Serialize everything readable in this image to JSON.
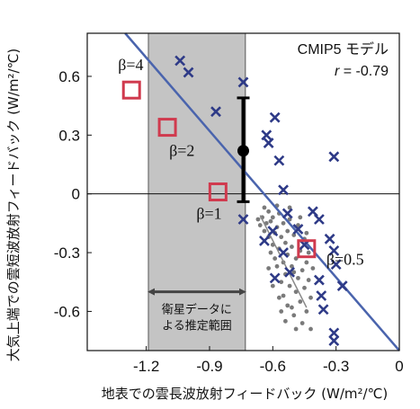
{
  "chart_data": {
    "type": "scatter",
    "xlabel": "地表での雲長波放射フィードバック (W/m²/℃)",
    "ylabel": "大気上端での雲短波放射フィードバック (W/m²/℃)",
    "xlim": [
      -1.48,
      0
    ],
    "ylim": [
      -0.8,
      0.82
    ],
    "x_ticks": [
      -1.2,
      -0.9,
      -0.6,
      -0.3,
      0
    ],
    "x_tick_labels": [
      "-1.2",
      "-0.9",
      "-0.6",
      "-0.3",
      "0"
    ],
    "y_ticks": [
      0.6,
      0.3,
      0,
      -0.3,
      -0.6
    ],
    "y_tick_labels": [
      "0.6",
      "0.3",
      "0",
      "-0.3",
      "-0.6"
    ],
    "zero_line": true,
    "grid": false,
    "model_label": "CMIP5 モデル",
    "correlation_label": "r = -0.79",
    "correlation_prefix": "r",
    "correlation_value": " = -0.79",
    "satellite_range": {
      "x_min": -1.19,
      "x_max": -0.73,
      "fill": "#c4c4c4",
      "label_line1": "衛星データに",
      "label_line2": "よる推定範囲",
      "arrow_y": -0.5
    },
    "models": [
      {
        "x": -1.04,
        "y": 0.68
      },
      {
        "x": -1.0,
        "y": 0.62
      },
      {
        "x": -0.87,
        "y": 0.42
      },
      {
        "x": -0.74,
        "y": 0.57
      },
      {
        "x": -0.74,
        "y": -0.13
      },
      {
        "x": -0.59,
        "y": 0.39
      },
      {
        "x": -0.63,
        "y": 0.3
      },
      {
        "x": -0.62,
        "y": 0.26
      },
      {
        "x": -0.57,
        "y": 0.17
      },
      {
        "x": -0.55,
        "y": 0.02
      },
      {
        "x": -0.53,
        "y": -0.1
      },
      {
        "x": -0.6,
        "y": -0.19
      },
      {
        "x": -0.64,
        "y": -0.24
      },
      {
        "x": -0.55,
        "y": -0.3
      },
      {
        "x": -0.59,
        "y": -0.43
      },
      {
        "x": -0.52,
        "y": -0.4
      },
      {
        "x": -0.48,
        "y": -0.18
      },
      {
        "x": -0.45,
        "y": -0.26
      },
      {
        "x": -0.41,
        "y": -0.09
      },
      {
        "x": -0.38,
        "y": -0.13
      },
      {
        "x": -0.33,
        "y": -0.23
      },
      {
        "x": -0.31,
        "y": 0.19
      },
      {
        "x": -0.31,
        "y": -0.29
      },
      {
        "x": -0.38,
        "y": -0.44
      },
      {
        "x": -0.3,
        "y": -0.36
      },
      {
        "x": -0.37,
        "y": -0.52
      },
      {
        "x": -0.27,
        "y": -0.47
      },
      {
        "x": -0.36,
        "y": -0.59
      },
      {
        "x": -0.31,
        "y": -0.71
      },
      {
        "x": -0.31,
        "y": -0.75
      }
    ],
    "model_color": "#2e3a87",
    "regression_line": {
      "x1": -1.3,
      "y1": 0.82,
      "x2": 0.0,
      "y2": -0.8,
      "color": "#4a64ad"
    },
    "satellite_estimate": {
      "x": -0.74,
      "y": 0.22,
      "y_low": -0.04,
      "y_high": 0.49
    },
    "secondary_line": {
      "x1": -0.66,
      "y1": -0.11,
      "x2": -0.44,
      "y2": -0.58,
      "color": "#888888"
    },
    "ensemble": [
      {
        "x": -0.67,
        "y": -0.13
      },
      {
        "x": -0.66,
        "y": -0.16
      },
      {
        "x": -0.65,
        "y": -0.12
      },
      {
        "x": -0.64,
        "y": -0.19
      },
      {
        "x": -0.63,
        "y": -0.15
      },
      {
        "x": -0.62,
        "y": -0.09
      },
      {
        "x": -0.62,
        "y": -0.22
      },
      {
        "x": -0.61,
        "y": -0.14
      },
      {
        "x": -0.6,
        "y": -0.26
      },
      {
        "x": -0.6,
        "y": -0.12
      },
      {
        "x": -0.59,
        "y": -0.2
      },
      {
        "x": -0.59,
        "y": -0.33
      },
      {
        "x": -0.58,
        "y": -0.17
      },
      {
        "x": -0.58,
        "y": -0.37
      },
      {
        "x": -0.57,
        "y": -0.28
      },
      {
        "x": -0.57,
        "y": -0.1
      },
      {
        "x": -0.56,
        "y": -0.22
      },
      {
        "x": -0.56,
        "y": -0.45
      },
      {
        "x": -0.55,
        "y": -0.15
      },
      {
        "x": -0.55,
        "y": -0.35
      },
      {
        "x": -0.55,
        "y": -0.52
      },
      {
        "x": -0.54,
        "y": -0.25
      },
      {
        "x": -0.54,
        "y": -0.41
      },
      {
        "x": -0.53,
        "y": -0.19
      },
      {
        "x": -0.53,
        "y": -0.31
      },
      {
        "x": -0.53,
        "y": -0.57
      },
      {
        "x": -0.52,
        "y": -0.47
      },
      {
        "x": -0.52,
        "y": -0.13
      },
      {
        "x": -0.51,
        "y": -0.27
      },
      {
        "x": -0.51,
        "y": -0.37
      },
      {
        "x": -0.5,
        "y": -0.21
      },
      {
        "x": -0.5,
        "y": -0.62
      },
      {
        "x": -0.49,
        "y": -0.33
      },
      {
        "x": -0.49,
        "y": -0.5
      },
      {
        "x": -0.48,
        "y": -0.43
      },
      {
        "x": -0.48,
        "y": -0.16
      },
      {
        "x": -0.47,
        "y": -0.29
      },
      {
        "x": -0.47,
        "y": -0.55
      },
      {
        "x": -0.46,
        "y": -0.39
      },
      {
        "x": -0.46,
        "y": -0.66
      },
      {
        "x": -0.45,
        "y": -0.23
      },
      {
        "x": -0.45,
        "y": -0.48
      },
      {
        "x": -0.44,
        "y": -0.35
      },
      {
        "x": -0.44,
        "y": -0.6
      },
      {
        "x": -0.43,
        "y": -0.3
      },
      {
        "x": -0.43,
        "y": -0.44
      },
      {
        "x": -0.42,
        "y": -0.53
      },
      {
        "x": -0.42,
        "y": -0.69
      },
      {
        "x": -0.41,
        "y": -0.38
      },
      {
        "x": -0.61,
        "y": -0.3
      },
      {
        "x": -0.64,
        "y": -0.07
      },
      {
        "x": -0.58,
        "y": -0.06
      },
      {
        "x": -0.52,
        "y": -0.07
      },
      {
        "x": -0.5,
        "y": -0.4
      },
      {
        "x": -0.56,
        "y": -0.6
      },
      {
        "x": -0.47,
        "y": -0.12
      },
      {
        "x": -0.44,
        "y": -0.2
      },
      {
        "x": -0.6,
        "y": -0.47
      },
      {
        "x": -0.54,
        "y": -0.65
      },
      {
        "x": -0.49,
        "y": -0.69
      },
      {
        "x": -0.62,
        "y": -0.38
      },
      {
        "x": -0.57,
        "y": -0.53
      },
      {
        "x": -0.51,
        "y": -0.58
      }
    ],
    "ensemble_color": "#7a7a7a",
    "beta_markers": [
      {
        "label": "β=4",
        "x": -1.27,
        "y": 0.53
      },
      {
        "label": "β=2",
        "x": -1.1,
        "y": 0.34
      },
      {
        "label": "β=1",
        "x": -0.86,
        "y": 0.01
      },
      {
        "label": "β=0.5",
        "x": -0.44,
        "y": -0.28
      }
    ],
    "beta_color": "#d03a4e"
  }
}
